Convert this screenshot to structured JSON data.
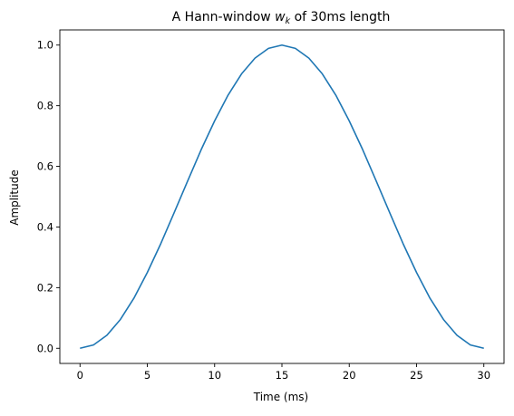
{
  "chart_data": {
    "type": "line",
    "title": {
      "prefix": "A Hann-window ",
      "symbol": "w",
      "subscript": "k",
      "suffix": " of 30ms length"
    },
    "xlabel": "Time (ms)",
    "ylabel": "Amplitude",
    "xlim": [
      -1.5,
      31.5
    ],
    "ylim": [
      -0.05,
      1.05
    ],
    "xticks": [
      0,
      5,
      10,
      15,
      20,
      25,
      30
    ],
    "xtick_labels": [
      "0",
      "5",
      "10",
      "15",
      "20",
      "25",
      "30"
    ],
    "yticks": [
      0.0,
      0.2,
      0.4,
      0.6,
      0.8,
      1.0
    ],
    "ytick_labels": [
      "0.0",
      "0.2",
      "0.4",
      "0.6",
      "0.8",
      "1.0"
    ],
    "grid": false,
    "series": [
      {
        "color": "#1f77b4",
        "x": [
          0,
          1,
          2,
          3,
          4,
          5,
          6,
          7,
          8,
          9,
          10,
          11,
          12,
          13,
          14,
          15,
          16,
          17,
          18,
          19,
          20,
          21,
          22,
          23,
          24,
          25,
          26,
          27,
          28,
          29,
          30
        ],
        "y": [
          0.0,
          0.011,
          0.043,
          0.095,
          0.165,
          0.25,
          0.345,
          0.448,
          0.552,
          0.655,
          0.75,
          0.835,
          0.905,
          0.957,
          0.989,
          1.0,
          0.989,
          0.957,
          0.905,
          0.835,
          0.75,
          0.655,
          0.552,
          0.448,
          0.345,
          0.25,
          0.165,
          0.095,
          0.043,
          0.011,
          0.0
        ]
      }
    ]
  }
}
